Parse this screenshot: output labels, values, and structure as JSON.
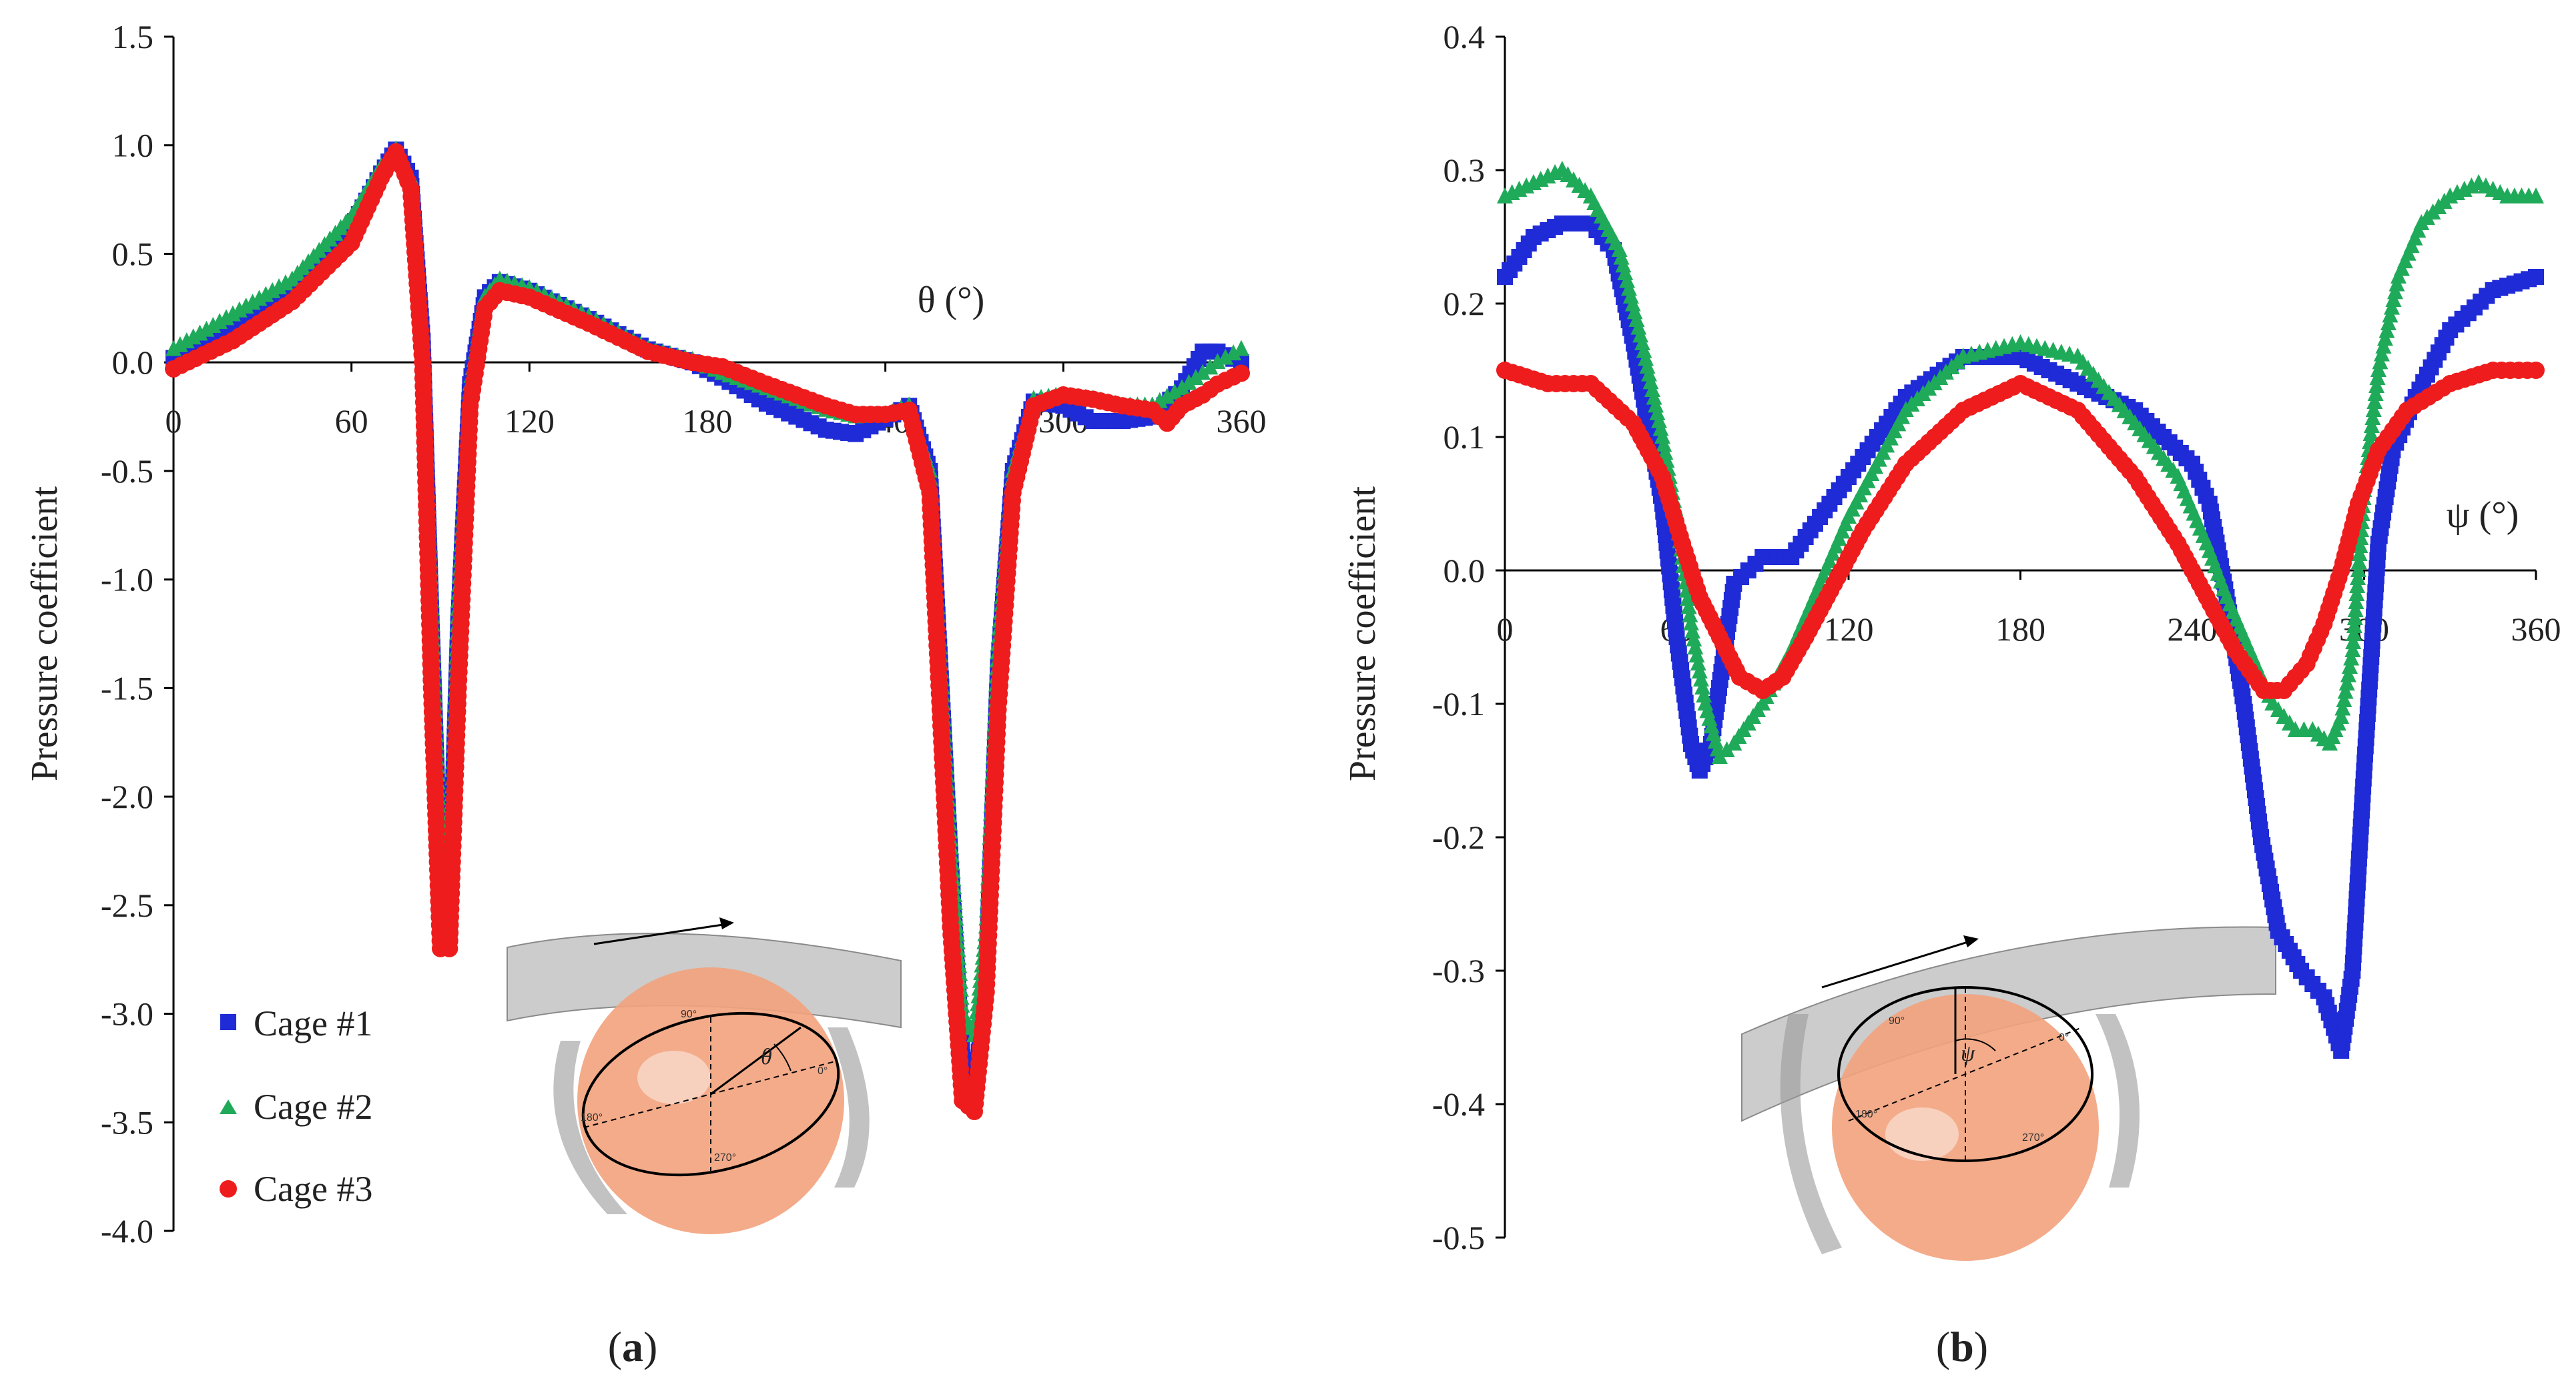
{
  "colors": {
    "cage1": "#1f2bd6",
    "cage2": "#1faa5a",
    "cage3": "#ee1c1c",
    "axis": "#000000"
  },
  "legend": [
    {
      "label": "Cage #1",
      "marker": "square",
      "color": "#1f2bd6"
    },
    {
      "label": "Cage #2",
      "marker": "triangle",
      "color": "#1faa5a"
    },
    {
      "label": "Cage #3",
      "marker": "circle",
      "color": "#ee1c1c"
    }
  ],
  "diagrams": {
    "a": {
      "angle_symbol": "θ",
      "angle_labels": [
        "90°",
        "0°",
        "180°",
        "270°"
      ]
    },
    "b": {
      "angle_symbol": "ψ",
      "angle_labels": [
        "90°",
        "0°",
        "180°",
        "270°"
      ]
    }
  },
  "chart_data": [
    {
      "type": "scatter",
      "panel_label_prefix": "(",
      "panel_label": "a",
      "panel_label_suffix": ")",
      "title": "",
      "xlabel": "θ (°)",
      "ylabel": "Pressure coefficient",
      "xlim": [
        0,
        360
      ],
      "ylim": [
        -4.0,
        1.5
      ],
      "xticks": [
        0,
        60,
        120,
        180,
        240,
        300,
        360
      ],
      "yticks": [
        1.5,
        1.0,
        0.5,
        0.0,
        -0.5,
        -1.0,
        -1.5,
        -2.0,
        -2.5,
        -3.0,
        -3.5,
        -4.0
      ],
      "ytick_labels": [
        "1.5",
        "1.0",
        "0.5",
        "0.0",
        "-0.5",
        "-1.0",
        "-1.5",
        "-2.0",
        "-2.5",
        "-3.0",
        "-3.5",
        "-4.0"
      ],
      "series": [
        {
          "name": "Cage #1",
          "marker": "square",
          "color": "#1f2bd6",
          "x": [
            0,
            20,
            40,
            60,
            70,
            75,
            80,
            84,
            87,
            90,
            93,
            96,
            100,
            105,
            110,
            120,
            140,
            160,
            175,
            185,
            200,
            220,
            230,
            240,
            248,
            255,
            262,
            266,
            270,
            274,
            278,
            283,
            290,
            300,
            310,
            320,
            330,
            340,
            347,
            352,
            360
          ],
          "y": [
            0.02,
            0.15,
            0.32,
            0.62,
            0.87,
            0.98,
            0.85,
            0.1,
            -1.2,
            -2.4,
            -2.5,
            -1.2,
            -0.1,
            0.3,
            0.37,
            0.33,
            0.2,
            0.06,
            0.0,
            -0.07,
            -0.19,
            -0.31,
            -0.33,
            -0.26,
            -0.2,
            -0.5,
            -2.3,
            -3.2,
            -3.4,
            -2.8,
            -1.4,
            -0.5,
            -0.18,
            -0.2,
            -0.27,
            -0.27,
            -0.25,
            -0.12,
            0.05,
            0.05,
            0.0
          ]
        },
        {
          "name": "Cage #2",
          "marker": "triangle",
          "color": "#1faa5a",
          "x": [
            0,
            20,
            40,
            60,
            70,
            75,
            80,
            84,
            87,
            90,
            93,
            96,
            100,
            105,
            110,
            120,
            140,
            160,
            175,
            185,
            200,
            220,
            230,
            240,
            248,
            255,
            262,
            266,
            270,
            274,
            278,
            283,
            290,
            300,
            310,
            320,
            330,
            340,
            347,
            352,
            360
          ],
          "y": [
            0.06,
            0.22,
            0.38,
            0.67,
            0.9,
            0.98,
            0.85,
            0.1,
            -1.1,
            -2.3,
            -2.4,
            -1.1,
            -0.1,
            0.3,
            0.38,
            0.34,
            0.21,
            0.06,
            0.01,
            -0.05,
            -0.12,
            -0.22,
            -0.25,
            -0.24,
            -0.2,
            -0.5,
            -2.2,
            -3.0,
            -3.1,
            -2.6,
            -1.3,
            -0.5,
            -0.17,
            -0.15,
            -0.17,
            -0.2,
            -0.2,
            -0.12,
            -0.05,
            0.0,
            0.06
          ]
        },
        {
          "name": "Cage #3",
          "marker": "circle",
          "color": "#ee1c1c",
          "x": [
            0,
            20,
            40,
            60,
            70,
            75,
            80,
            84,
            87,
            90,
            93,
            96,
            100,
            105,
            110,
            120,
            140,
            160,
            175,
            185,
            200,
            220,
            230,
            240,
            248,
            255,
            262,
            266,
            270,
            274,
            278,
            283,
            290,
            300,
            310,
            320,
            330,
            335,
            340,
            347,
            352,
            360
          ],
          "y": [
            -0.03,
            0.1,
            0.28,
            0.55,
            0.85,
            0.97,
            0.8,
            0.0,
            -1.5,
            -2.7,
            -2.7,
            -1.5,
            -0.2,
            0.25,
            0.33,
            0.3,
            0.18,
            0.05,
            0.0,
            -0.02,
            -0.1,
            -0.2,
            -0.24,
            -0.24,
            -0.22,
            -0.6,
            -2.6,
            -3.4,
            -3.45,
            -2.9,
            -1.6,
            -0.6,
            -0.2,
            -0.15,
            -0.17,
            -0.2,
            -0.22,
            -0.28,
            -0.2,
            -0.15,
            -0.1,
            -0.05
          ]
        }
      ]
    },
    {
      "type": "scatter",
      "panel_label_prefix": "(",
      "panel_label": "b",
      "panel_label_suffix": ")",
      "title": "",
      "xlabel": "ψ (°)",
      "ylabel": "Pressure coefficient",
      "xlim": [
        0,
        360
      ],
      "ylim": [
        -0.5,
        0.4
      ],
      "xticks": [
        0,
        60,
        120,
        180,
        240,
        300,
        360
      ],
      "yticks": [
        0.4,
        0.3,
        0.2,
        0.1,
        0.0,
        -0.1,
        -0.2,
        -0.3,
        -0.4,
        -0.5
      ],
      "ytick_labels": [
        "0.4",
        "0.3",
        "0.2",
        "0.1",
        "0.0",
        "-0.1",
        "-0.2",
        "-0.3",
        "-0.4",
        "-0.5"
      ],
      "series": [
        {
          "name": "Cage #1",
          "marker": "square",
          "color": "#1f2bd6",
          "x": [
            0,
            10,
            20,
            30,
            38,
            45,
            50,
            55,
            60,
            65,
            68,
            72,
            76,
            80,
            85,
            90,
            100,
            110,
            120,
            140,
            160,
            180,
            200,
            220,
            240,
            246,
            252,
            258,
            264,
            270,
            278,
            286,
            292,
            296,
            300,
            305,
            310,
            318,
            330,
            345,
            360
          ],
          "y": [
            0.22,
            0.25,
            0.26,
            0.26,
            0.24,
            0.17,
            0.11,
            0.05,
            -0.05,
            -0.13,
            -0.15,
            -0.13,
            -0.07,
            -0.01,
            0.0,
            0.01,
            0.01,
            0.04,
            0.07,
            0.13,
            0.16,
            0.16,
            0.14,
            0.12,
            0.08,
            0.05,
            -0.02,
            -0.1,
            -0.2,
            -0.27,
            -0.3,
            -0.32,
            -0.36,
            -0.3,
            -0.15,
            0.02,
            0.09,
            0.13,
            0.18,
            0.21,
            0.22
          ]
        },
        {
          "name": "Cage #2",
          "marker": "triangle",
          "color": "#1faa5a",
          "x": [
            0,
            10,
            20,
            30,
            40,
            48,
            55,
            60,
            65,
            70,
            75,
            80,
            90,
            100,
            110,
            120,
            140,
            160,
            180,
            200,
            220,
            235,
            245,
            252,
            260,
            268,
            276,
            282,
            288,
            292,
            296,
            300,
            305,
            312,
            320,
            330,
            340,
            350,
            360
          ],
          "y": [
            0.28,
            0.29,
            0.3,
            0.28,
            0.24,
            0.17,
            0.1,
            0.04,
            -0.04,
            -0.1,
            -0.14,
            -0.13,
            -0.1,
            -0.06,
            -0.01,
            0.04,
            0.12,
            0.16,
            0.17,
            0.16,
            0.11,
            0.07,
            0.02,
            -0.02,
            -0.06,
            -0.1,
            -0.12,
            -0.12,
            -0.13,
            -0.11,
            -0.06,
            0.06,
            0.15,
            0.22,
            0.26,
            0.28,
            0.29,
            0.28,
            0.28
          ]
        },
        {
          "name": "Cage #3",
          "marker": "circle",
          "color": "#ee1c1c",
          "x": [
            0,
            15,
            30,
            45,
            55,
            62,
            68,
            75,
            82,
            90,
            97,
            105,
            115,
            125,
            140,
            160,
            180,
            200,
            220,
            235,
            245,
            255,
            265,
            272,
            280,
            286,
            292,
            298,
            305,
            315,
            330,
            345,
            360
          ],
          "y": [
            0.15,
            0.14,
            0.14,
            0.11,
            0.07,
            0.02,
            -0.02,
            -0.05,
            -0.08,
            -0.09,
            -0.08,
            -0.05,
            -0.01,
            0.03,
            0.08,
            0.12,
            0.14,
            0.12,
            0.07,
            0.02,
            -0.02,
            -0.06,
            -0.09,
            -0.09,
            -0.07,
            -0.04,
            0.0,
            0.05,
            0.09,
            0.12,
            0.14,
            0.15,
            0.15
          ]
        }
      ]
    }
  ]
}
